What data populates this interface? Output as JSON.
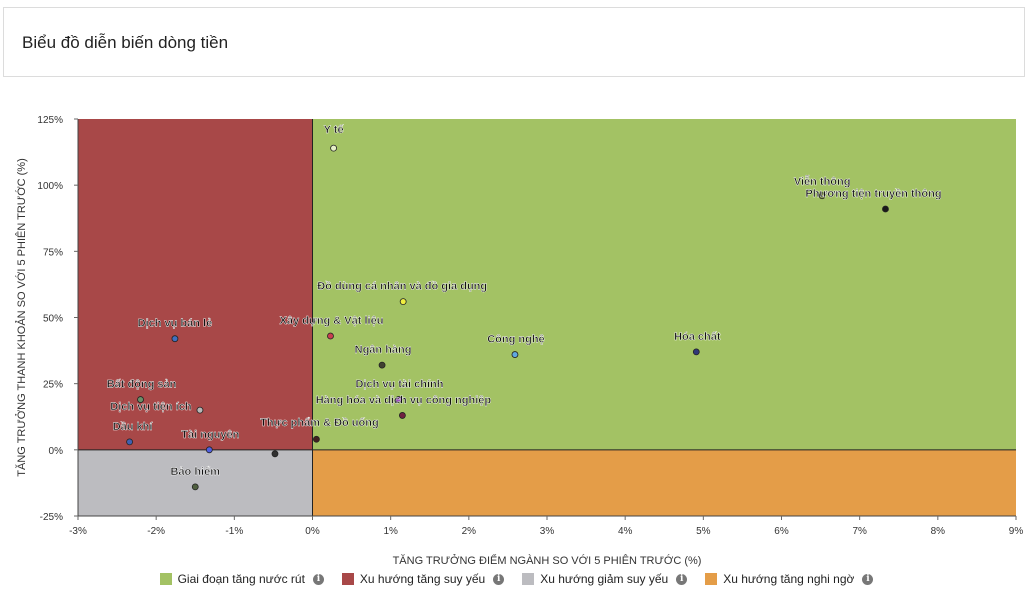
{
  "header": {
    "title": "Biểu đồ diễn biến dòng tiền"
  },
  "chart_data": {
    "type": "scatter",
    "title": "",
    "xlabel": "TĂNG TRƯỞNG ĐIỂM NGÀNH SO VỚI 5 PHIÊN TRƯỚC (%)",
    "ylabel": "TĂNG TRƯỞNG THANH KHOẢN SO VỚI 5 PHIÊN TRƯỚC (%)",
    "xlim": [
      -3,
      9
    ],
    "ylim": [
      -25,
      125
    ],
    "x_ticks": [
      -3,
      -2,
      -1,
      0,
      1,
      2,
      3,
      4,
      5,
      6,
      7,
      8,
      9
    ],
    "x_tick_labels": [
      "-3%",
      "-2%",
      "-1%",
      "0%",
      "1%",
      "2%",
      "3%",
      "4%",
      "5%",
      "6%",
      "7%",
      "8%",
      "9%"
    ],
    "y_ticks": [
      -25,
      0,
      25,
      50,
      75,
      100,
      125
    ],
    "y_tick_labels": [
      "-25%",
      "0%",
      "25%",
      "50%",
      "75%",
      "100%",
      "125%"
    ],
    "quadrants": {
      "top_right": "#a3c264",
      "top_left": "#a84848",
      "bottom_left": "#bcbcc0",
      "bottom_right": "#e49d48"
    },
    "points": [
      {
        "name": "Y tế",
        "x": 0.27,
        "y": 114,
        "color": "#e6f0c8"
      },
      {
        "name": "Viễn thông",
        "x": 6.52,
        "y": 96,
        "color": "#7a8a40"
      },
      {
        "name": "Phương tiện truyền thông",
        "x": 7.33,
        "y": 91,
        "color": "#1a1a1a"
      },
      {
        "name": "Đồ dùng cá nhân và đồ gia dụng",
        "x": 1.16,
        "y": 56,
        "color": "#f0ee40"
      },
      {
        "name": "Xây dựng & Vật liệu",
        "x": 0.23,
        "y": 43,
        "color": "#c84050"
      },
      {
        "name": "Dịch vụ bán lẻ",
        "x": -1.76,
        "y": 42,
        "color": "#4070c0"
      },
      {
        "name": "Công nghệ",
        "x": 2.59,
        "y": 36,
        "color": "#60a8e0"
      },
      {
        "name": "Hóa chất",
        "x": 4.91,
        "y": 37,
        "color": "#303878"
      },
      {
        "name": "Ngân hàng",
        "x": 0.89,
        "y": 32,
        "color": "#404030"
      },
      {
        "name": "Bất động sản",
        "x": -2.2,
        "y": 19,
        "color": "#6a9068"
      },
      {
        "name": "Dịch vụ tiện ích",
        "x": -1.44,
        "y": 15,
        "color": "#b8b8b8"
      },
      {
        "name": "Dịch vụ tài chính",
        "x": 1.1,
        "y": 19,
        "color": "#a050c0"
      },
      {
        "name": "Hàng hóa và dịch vụ công nghiệp",
        "x": 1.15,
        "y": 13,
        "color": "#702040"
      },
      {
        "name": "Dầu khí",
        "x": -2.34,
        "y": 3,
        "color": "#4060b0"
      },
      {
        "name": "Tài nguyên",
        "x": -1.32,
        "y": 0,
        "color": "#5060e0"
      },
      {
        "name": "Thực phẩm & Đồ uống",
        "x": 0.05,
        "y": 4,
        "color": "#402020"
      },
      {
        "name": "",
        "x": -0.48,
        "y": -1.5,
        "color": "#303030"
      },
      {
        "name": "Bảo hiểm",
        "x": -1.5,
        "y": -14,
        "color": "#506040"
      }
    ],
    "legend": [
      {
        "label": "Giai đoạn tăng nước rút",
        "color": "#a3c264"
      },
      {
        "label": "Xu hướng tăng suy yếu",
        "color": "#a84848"
      },
      {
        "label": "Xu hướng giảm suy yếu",
        "color": "#bcbcc0"
      },
      {
        "label": "Xu hướng tăng nghi ngờ",
        "color": "#e49d48"
      }
    ],
    "grid": false,
    "legend_position": "bottom"
  }
}
